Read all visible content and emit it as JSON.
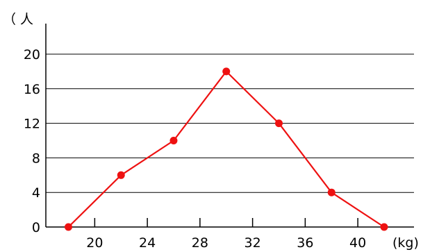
{
  "chart_data": {
    "type": "line",
    "title": "",
    "ylabel": "（ 人",
    "xlabel": "(kg)",
    "x": [
      18,
      22,
      26,
      30,
      34,
      38,
      42
    ],
    "series": [
      {
        "values": [
          0,
          6,
          10,
          18,
          12,
          4,
          0
        ]
      }
    ],
    "xticks": [
      20,
      24,
      28,
      32,
      36,
      40
    ],
    "xtick_labels": [
      "20",
      "24",
      "28",
      "32",
      "36",
      "40"
    ],
    "yticks": [
      0,
      4,
      8,
      12,
      16,
      20
    ],
    "ytick_labels": [
      "0",
      "4",
      "8",
      "12",
      "16",
      "20"
    ],
    "xlim": [
      16,
      44
    ],
    "ylim": [
      0,
      20
    ],
    "grid": "horizontal",
    "line_color": "#ee1111",
    "marker_color": "#ee1111"
  }
}
